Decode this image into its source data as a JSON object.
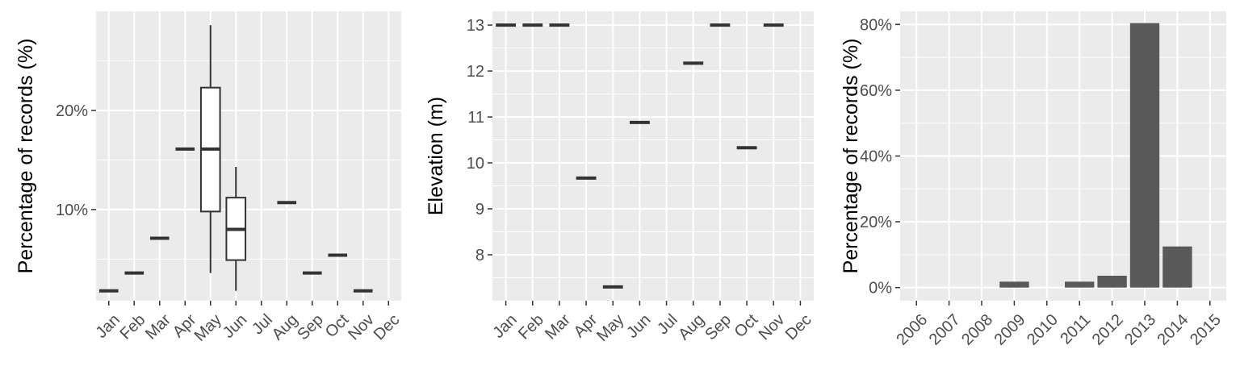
{
  "chart_data": [
    {
      "type": "boxplot",
      "title": "",
      "xlabel": "",
      "ylabel": "Percentage of records (%)",
      "ylim": [
        0.8,
        30
      ],
      "y_ticks": [
        10,
        20
      ],
      "y_tick_labels": [
        "10%",
        "20%"
      ],
      "categories": [
        "Jan",
        "Feb",
        "Mar",
        "Apr",
        "May",
        "Jun",
        "Jul",
        "Aug",
        "Sep",
        "Oct",
        "Nov",
        "Dec"
      ],
      "boxes": [
        {
          "category": "Jan",
          "min": 1.8,
          "q1": 1.8,
          "median": 1.8,
          "q3": 1.8,
          "max": 1.8
        },
        {
          "category": "Feb",
          "min": 3.6,
          "q1": 3.6,
          "median": 3.6,
          "q3": 3.6,
          "max": 3.6
        },
        {
          "category": "Mar",
          "min": 7.1,
          "q1": 7.1,
          "median": 7.1,
          "q3": 7.1,
          "max": 7.1
        },
        {
          "category": "Apr",
          "min": 16.1,
          "q1": 16.1,
          "median": 16.1,
          "q3": 16.1,
          "max": 16.1
        },
        {
          "category": "May",
          "min": 3.6,
          "q1": 9.8,
          "median": 16.1,
          "q3": 22.3,
          "max": 28.6
        },
        {
          "category": "Jun",
          "min": 1.8,
          "q1": 4.9,
          "median": 8.0,
          "q3": 11.2,
          "max": 14.3
        },
        {
          "category": "Aug",
          "min": 10.7,
          "q1": 10.7,
          "median": 10.7,
          "q3": 10.7,
          "max": 10.7
        },
        {
          "category": "Sep",
          "min": 3.6,
          "q1": 3.6,
          "median": 3.6,
          "q3": 3.6,
          "max": 3.6
        },
        {
          "category": "Oct",
          "min": 5.4,
          "q1": 5.4,
          "median": 5.4,
          "q3": 5.4,
          "max": 5.4
        },
        {
          "category": "Nov",
          "min": 1.8,
          "q1": 1.8,
          "median": 1.8,
          "q3": 1.8,
          "max": 1.8
        }
      ]
    },
    {
      "type": "boxplot",
      "title": "",
      "xlabel": "",
      "ylabel": "Elevation (m)",
      "ylim": [
        7.0,
        13.3
      ],
      "y_ticks": [
        8,
        9,
        10,
        11,
        12,
        13
      ],
      "y_tick_labels": [
        "8",
        "9",
        "10",
        "11",
        "12",
        "13"
      ],
      "categories": [
        "Jan",
        "Feb",
        "Mar",
        "Apr",
        "May",
        "Jun",
        "Jul",
        "Aug",
        "Sep",
        "Oct",
        "Nov",
        "Dec"
      ],
      "boxes": [
        {
          "category": "Jan",
          "min": 13.0,
          "q1": 13.0,
          "median": 13.0,
          "q3": 13.0,
          "max": 13.0
        },
        {
          "category": "Feb",
          "min": 13.0,
          "q1": 13.0,
          "median": 13.0,
          "q3": 13.0,
          "max": 13.0
        },
        {
          "category": "Mar",
          "min": 13.0,
          "q1": 13.0,
          "median": 13.0,
          "q3": 13.0,
          "max": 13.0
        },
        {
          "category": "Apr",
          "min": 9.67,
          "q1": 9.67,
          "median": 9.67,
          "q3": 9.67,
          "max": 9.67
        },
        {
          "category": "May",
          "min": 7.3,
          "q1": 7.3,
          "median": 7.3,
          "q3": 7.3,
          "max": 7.3
        },
        {
          "category": "Jun",
          "min": 10.88,
          "q1": 10.88,
          "median": 10.88,
          "q3": 10.88,
          "max": 10.88
        },
        {
          "category": "Aug",
          "min": 12.17,
          "q1": 12.17,
          "median": 12.17,
          "q3": 12.17,
          "max": 12.17
        },
        {
          "category": "Sep",
          "min": 13.0,
          "q1": 13.0,
          "median": 13.0,
          "q3": 13.0,
          "max": 13.0
        },
        {
          "category": "Oct",
          "min": 10.33,
          "q1": 10.33,
          "median": 10.33,
          "q3": 10.33,
          "max": 10.33
        },
        {
          "category": "Nov",
          "min": 13.0,
          "q1": 13.0,
          "median": 13.0,
          "q3": 13.0,
          "max": 13.0
        }
      ]
    },
    {
      "type": "bar",
      "title": "",
      "xlabel": "",
      "ylabel": "Percentage of records (%)",
      "ylim": [
        -4,
        84
      ],
      "y_ticks": [
        0,
        20,
        40,
        60,
        80
      ],
      "y_tick_labels": [
        "0%",
        "20%",
        "40%",
        "60%",
        "80%"
      ],
      "categories": [
        "2006",
        "2007",
        "2008",
        "2009",
        "2010",
        "2011",
        "2012",
        "2013",
        "2014",
        "2015"
      ],
      "values": [
        0,
        0,
        0,
        1.8,
        0,
        1.8,
        3.6,
        80.4,
        12.5,
        0
      ]
    }
  ]
}
